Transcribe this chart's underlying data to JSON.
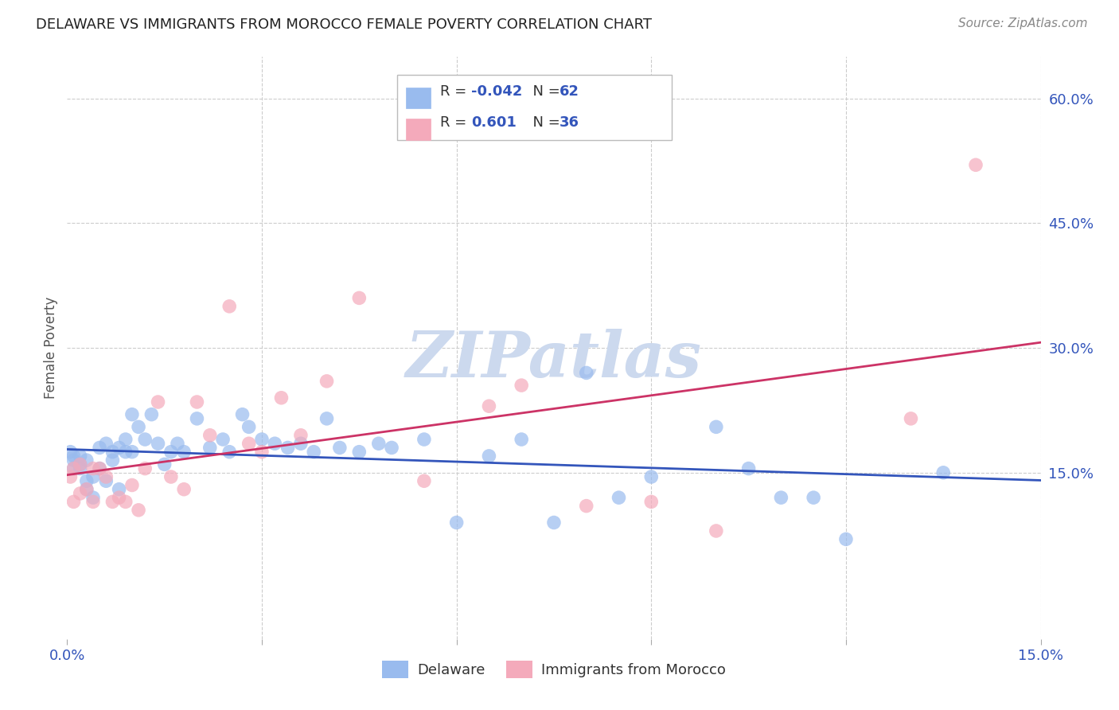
{
  "title": "DELAWARE VS IMMIGRANTS FROM MOROCCO FEMALE POVERTY CORRELATION CHART",
  "source": "Source: ZipAtlas.com",
  "ylabel": "Female Poverty",
  "xlim": [
    0.0,
    0.15
  ],
  "ylim": [
    -0.05,
    0.65
  ],
  "grid_color": "#cccccc",
  "background_color": "#ffffff",
  "watermark_text": "ZIPatlas",
  "watermark_color": "#ccd9ee",
  "delaware_color": "#99bbee",
  "morocco_color": "#f4aabb",
  "delaware_line_color": "#3355bb",
  "morocco_line_color": "#cc3366",
  "delaware_R": "-0.042",
  "delaware_N": "62",
  "morocco_R": "0.601",
  "morocco_N": "36",
  "ytick_vals": [
    0.0,
    0.15,
    0.3,
    0.45,
    0.6
  ],
  "ytick_labels": [
    "",
    "15.0%",
    "30.0%",
    "45.0%",
    "60.0%"
  ],
  "xtick_vals": [
    0.0,
    0.03,
    0.06,
    0.09,
    0.12,
    0.15
  ],
  "xtick_labels": [
    "0.0%",
    "",
    "",
    "",
    "",
    "15.0%"
  ],
  "delaware_x": [
    0.0005,
    0.001,
    0.001,
    0.001,
    0.002,
    0.002,
    0.002,
    0.003,
    0.003,
    0.003,
    0.004,
    0.004,
    0.005,
    0.005,
    0.006,
    0.006,
    0.007,
    0.007,
    0.008,
    0.008,
    0.009,
    0.009,
    0.01,
    0.01,
    0.011,
    0.012,
    0.013,
    0.014,
    0.015,
    0.016,
    0.017,
    0.018,
    0.02,
    0.022,
    0.024,
    0.025,
    0.027,
    0.028,
    0.03,
    0.032,
    0.034,
    0.036,
    0.038,
    0.04,
    0.042,
    0.045,
    0.048,
    0.05,
    0.055,
    0.06,
    0.065,
    0.07,
    0.075,
    0.08,
    0.085,
    0.09,
    0.1,
    0.105,
    0.11,
    0.115,
    0.12,
    0.135
  ],
  "delaware_y": [
    0.175,
    0.17,
    0.165,
    0.155,
    0.16,
    0.17,
    0.155,
    0.165,
    0.14,
    0.13,
    0.12,
    0.145,
    0.155,
    0.18,
    0.185,
    0.14,
    0.165,
    0.175,
    0.18,
    0.13,
    0.175,
    0.19,
    0.175,
    0.22,
    0.205,
    0.19,
    0.22,
    0.185,
    0.16,
    0.175,
    0.185,
    0.175,
    0.215,
    0.18,
    0.19,
    0.175,
    0.22,
    0.205,
    0.19,
    0.185,
    0.18,
    0.185,
    0.175,
    0.215,
    0.18,
    0.175,
    0.185,
    0.18,
    0.19,
    0.09,
    0.17,
    0.19,
    0.09,
    0.27,
    0.12,
    0.145,
    0.205,
    0.155,
    0.12,
    0.12,
    0.07,
    0.15
  ],
  "morocco_x": [
    0.0005,
    0.001,
    0.001,
    0.002,
    0.002,
    0.003,
    0.004,
    0.004,
    0.005,
    0.006,
    0.007,
    0.008,
    0.009,
    0.01,
    0.011,
    0.012,
    0.014,
    0.016,
    0.018,
    0.02,
    0.022,
    0.025,
    0.028,
    0.03,
    0.033,
    0.036,
    0.04,
    0.045,
    0.055,
    0.065,
    0.07,
    0.08,
    0.09,
    0.1,
    0.13,
    0.14
  ],
  "morocco_y": [
    0.145,
    0.115,
    0.155,
    0.125,
    0.16,
    0.13,
    0.155,
    0.115,
    0.155,
    0.145,
    0.115,
    0.12,
    0.115,
    0.135,
    0.105,
    0.155,
    0.235,
    0.145,
    0.13,
    0.235,
    0.195,
    0.35,
    0.185,
    0.175,
    0.24,
    0.195,
    0.26,
    0.36,
    0.14,
    0.23,
    0.255,
    0.11,
    0.115,
    0.08,
    0.215,
    0.52
  ]
}
